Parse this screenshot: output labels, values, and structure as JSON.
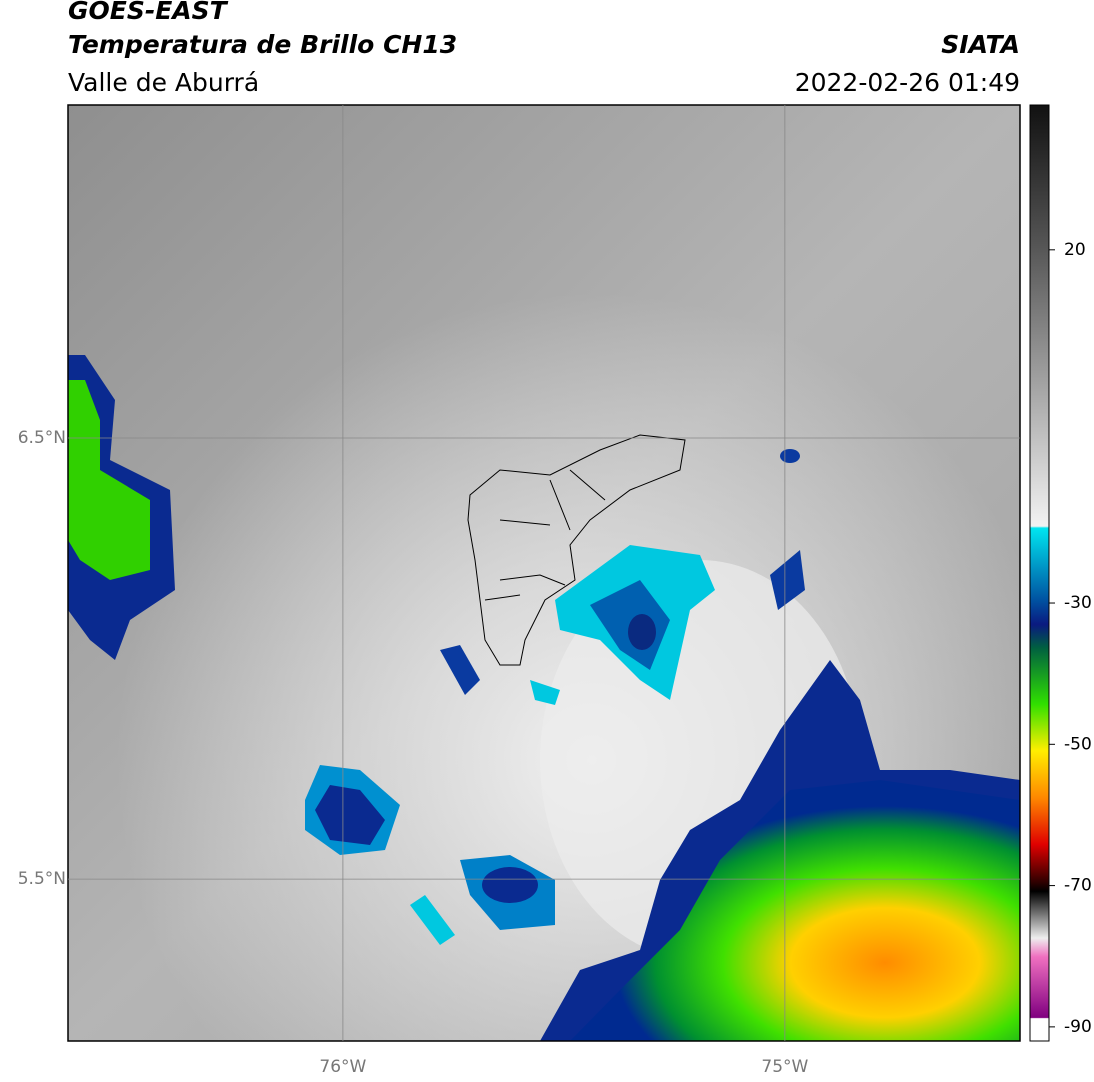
{
  "header": {
    "title": "GOES-EAST",
    "subtitle": "Temperatura de Brillo CH13",
    "region": "Valle de Aburrá",
    "source": "SIATA",
    "datetime": "2022-02-26 01:49"
  },
  "map": {
    "lonlim": [
      -76.622,
      -74.468
    ],
    "latlim": [
      5.133,
      7.255
    ],
    "lonticks": [
      {
        "value": -76,
        "label": "76°W"
      },
      {
        "value": -75,
        "label": "75°W"
      }
    ],
    "latticks": [
      {
        "value": 6.5,
        "label": "6.5°N"
      },
      {
        "value": 5.5,
        "label": "5.5°N"
      }
    ]
  },
  "colorbar": {
    "lim": [
      -92,
      40.5
    ],
    "ticks": [
      20,
      -30,
      -50,
      -70,
      -90
    ]
  }
}
